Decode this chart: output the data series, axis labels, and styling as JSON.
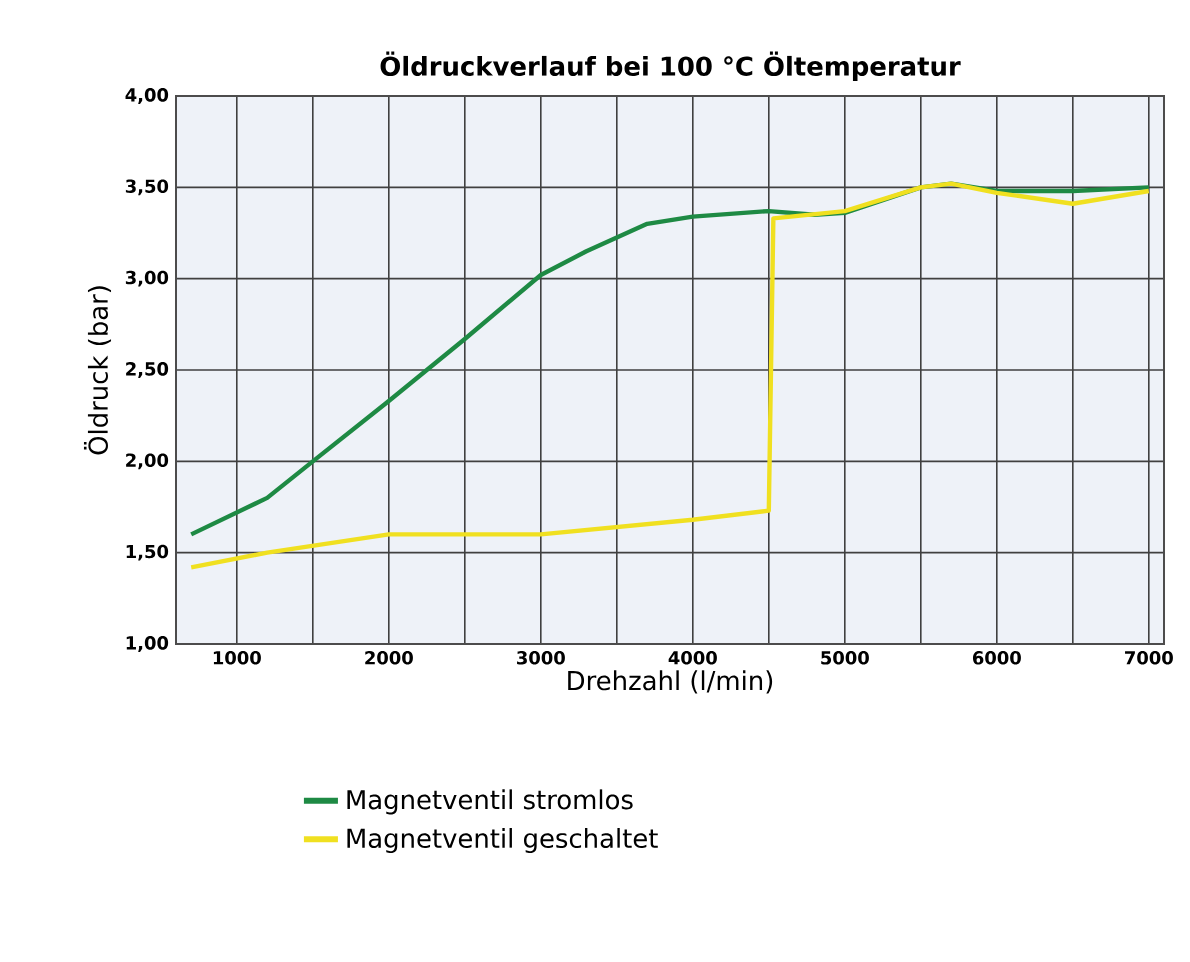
{
  "chart_data": {
    "type": "line",
    "title": "Öldruckverlauf bei 100 °C Öltemperatur",
    "xlabel": "Drehzahl (l/min)",
    "ylabel": "Öldruck (bar)",
    "xlim": [
      600,
      7100
    ],
    "xticks": [
      1000,
      {
        "value": 1500,
        "label": null
      },
      2000,
      {
        "value": 2500,
        "label": null
      },
      3000,
      {
        "value": 3500,
        "label": null
      },
      4000,
      {
        "value": 4500,
        "label": null
      },
      5000,
      {
        "value": 5500,
        "label": null
      },
      6000,
      {
        "value": 6500,
        "label": null
      },
      7000
    ],
    "ylim": [
      1,
      4
    ],
    "yticks": [
      {
        "value": 1,
        "label": "1,00"
      },
      {
        "value": 1.5,
        "label": "1,50"
      },
      {
        "value": 2,
        "label": "2,00"
      },
      {
        "value": 2.5,
        "label": "2,50"
      },
      {
        "value": 3,
        "label": "3,00"
      },
      {
        "value": 3.5,
        "label": "3,50"
      },
      {
        "value": 4,
        "label": "4,00"
      }
    ],
    "grid": true,
    "legend": "bottom",
    "line_style": "solid",
    "marker": "none",
    "series": [
      {
        "name": "Magnetventil stromlos",
        "color": "#1e8a44",
        "x": [
          700,
          1200,
          1500,
          2000,
          2500,
          3000,
          3300,
          3700,
          4000,
          4500,
          4800,
          5000,
          5500,
          5700,
          6000,
          6500,
          7000
        ],
        "values": [
          1.6,
          1.8,
          2.0,
          2.33,
          2.67,
          3.02,
          3.15,
          3.3,
          3.34,
          3.37,
          3.35,
          3.36,
          3.5,
          3.52,
          3.48,
          3.48,
          3.5
        ]
      },
      {
        "name": "Magnetventil geschaltet",
        "color": "#f0e020",
        "x": [
          700,
          1200,
          2000,
          3000,
          4000,
          4500,
          4530,
          5000,
          5500,
          5700,
          6000,
          6500,
          7000
        ],
        "values": [
          1.42,
          1.5,
          1.6,
          1.6,
          1.68,
          1.73,
          3.33,
          3.37,
          3.5,
          3.52,
          3.47,
          3.41,
          3.48
        ]
      }
    ]
  }
}
